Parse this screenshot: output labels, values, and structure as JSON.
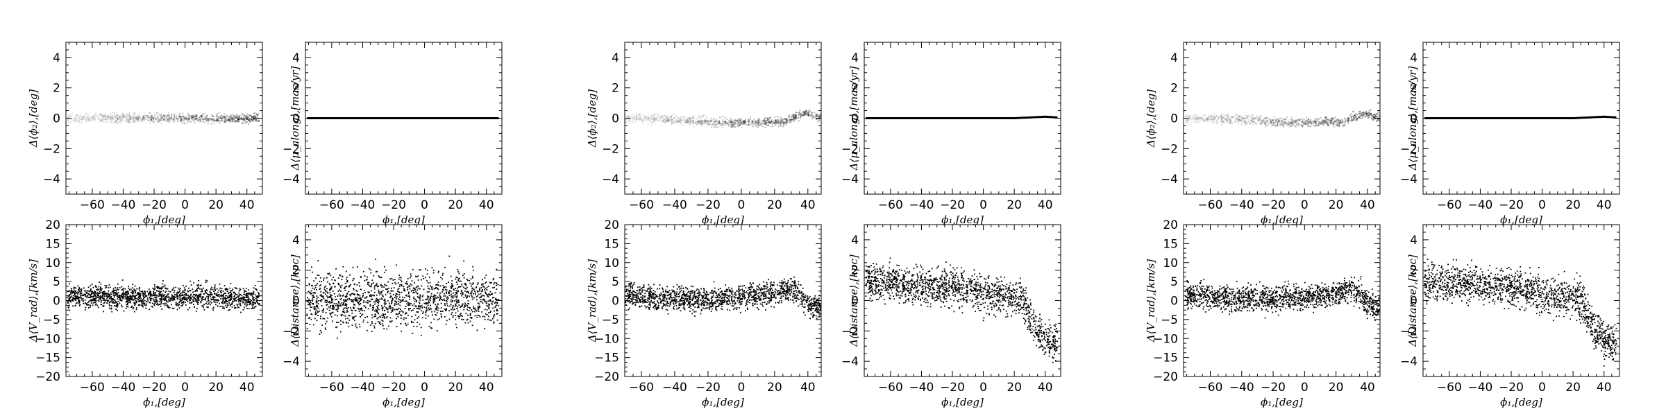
{
  "chart_data": [
    {
      "type": "scatter",
      "panel": "group1-top-left",
      "xlabel": "ϕ₁,[deg]",
      "ylabel": "Δ⟨ϕ₂⟩,[deg]",
      "xlim": [
        -77,
        50
      ],
      "ylim": [
        -5,
        5
      ],
      "xticks": [
        "−60",
        "−40",
        "−20",
        "0",
        "20",
        "40"
      ],
      "xtick_values": [
        -60,
        -40,
        -20,
        0,
        20,
        40
      ],
      "yticks": [
        "4",
        "2",
        "0",
        "−2",
        "−4"
      ],
      "ytick_values": [
        4,
        2,
        0,
        -2,
        -4
      ],
      "series": [
        {
          "style": "faint-band",
          "x": [
            -76,
            -70,
            -60,
            -50,
            -40,
            -30,
            -20,
            -10,
            0,
            10,
            20,
            30,
            40,
            48
          ],
          "y": [
            0,
            0,
            0,
            0,
            0,
            0,
            0,
            0,
            0,
            0,
            0,
            0,
            0,
            0
          ],
          "spread": 0.15
        }
      ]
    },
    {
      "type": "scatter",
      "panel": "group1-top-right",
      "xlabel": "ϕ₁,[deg]",
      "ylabel": "Δ⟨μ_along⟩,[mas/yr]",
      "xlim": [
        -77,
        50
      ],
      "ylim": [
        -5,
        5
      ],
      "xticks": [
        "−60",
        "−40",
        "−20",
        "0",
        "20",
        "40"
      ],
      "xtick_values": [
        -60,
        -40,
        -20,
        0,
        20,
        40
      ],
      "yticks": [
        "4",
        "2",
        "0",
        "−2",
        "−4"
      ],
      "ytick_values": [
        4,
        2,
        0,
        -2,
        -4
      ],
      "series": [
        {
          "style": "thin-line",
          "x": [
            -76,
            -60,
            -40,
            -20,
            0,
            20,
            40,
            48
          ],
          "y": [
            0,
            0,
            0,
            0,
            0,
            0,
            0,
            0
          ],
          "spread": 0.03
        }
      ]
    },
    {
      "type": "scatter",
      "panel": "group1-bottom-left",
      "xlabel": "ϕ₁,[deg]",
      "ylabel": "Δ⟨V_rad⟩,[km/s]",
      "xlim": [
        -77,
        50
      ],
      "ylim": [
        -20,
        20
      ],
      "xticks": [
        "−60",
        "−40",
        "−20",
        "0",
        "20",
        "40"
      ],
      "xtick_values": [
        -60,
        -40,
        -20,
        0,
        20,
        40
      ],
      "yticks": [
        "20",
        "15",
        "10",
        "5",
        "0",
        "−5",
        "−10",
        "−15",
        "−20"
      ],
      "ytick_values": [
        20,
        15,
        10,
        5,
        0,
        -5,
        -10,
        -15,
        -20
      ],
      "series": [
        {
          "style": "dense-points",
          "x": [
            -76,
            -60,
            -40,
            -20,
            0,
            20,
            40,
            48
          ],
          "y": [
            1,
            1,
            1,
            1,
            1,
            1,
            0.5,
            0.5
          ],
          "spread": 1.5
        }
      ]
    },
    {
      "type": "scatter",
      "panel": "group1-bottom-right",
      "xlabel": "ϕ₁,[deg]",
      "ylabel": "Δ⟨Distance⟩,[kpc]",
      "xlim": [
        -77,
        50
      ],
      "ylim": [
        -5,
        5
      ],
      "xticks": [
        "−60",
        "−40",
        "−20",
        "0",
        "20",
        "40"
      ],
      "xtick_values": [
        -60,
        -40,
        -20,
        0,
        20,
        40
      ],
      "yticks": [
        "4",
        "2",
        "0",
        "−2",
        "−4"
      ],
      "ytick_values": [
        4,
        2,
        0,
        -2,
        -4
      ],
      "series": [
        {
          "style": "dense-points",
          "x": [
            -76,
            -60,
            -40,
            -20,
            0,
            20,
            40,
            48
          ],
          "y": [
            0,
            0,
            0,
            0.1,
            0.1,
            0.2,
            0.1,
            0
          ],
          "spread": 0.9
        }
      ]
    },
    {
      "type": "scatter",
      "panel": "group2-top-left",
      "xlabel": "ϕ₁,[deg]",
      "ylabel": "Δ⟨ϕ₂⟩,[deg]",
      "xlim": [
        -70,
        48
      ],
      "ylim": [
        -5,
        5
      ],
      "xticks": [
        "−60",
        "−40",
        "−20",
        "0",
        "20",
        "40"
      ],
      "xtick_values": [
        -60,
        -40,
        -20,
        0,
        20,
        40
      ],
      "yticks": [
        "4",
        "2",
        "0",
        "−2",
        "−4"
      ],
      "ytick_values": [
        4,
        2,
        0,
        -2,
        -4
      ],
      "series": [
        {
          "style": "faint-band",
          "x": [
            -70,
            -60,
            -50,
            -40,
            -30,
            -20,
            -10,
            0,
            10,
            20,
            25,
            30,
            35,
            40,
            45,
            48
          ],
          "y": [
            0,
            0,
            -0.05,
            -0.1,
            -0.15,
            -0.25,
            -0.3,
            -0.3,
            -0.25,
            -0.2,
            -0.3,
            0,
            0.2,
            0.3,
            0.1,
            0
          ],
          "spread": 0.15
        }
      ]
    },
    {
      "type": "scatter",
      "panel": "group2-top-right",
      "xlabel": "ϕ₁,[deg]",
      "ylabel": "Δ⟨μ_along⟩,[mas/yr]",
      "xlim": [
        -77,
        50
      ],
      "ylim": [
        -5,
        5
      ],
      "xticks": [
        "−60",
        "−40",
        "−20",
        "0",
        "20",
        "40"
      ],
      "xtick_values": [
        -60,
        -40,
        -20,
        0,
        20,
        40
      ],
      "yticks": [
        "4",
        "2",
        "0",
        "−2",
        "−4"
      ],
      "ytick_values": [
        4,
        2,
        0,
        -2,
        -4
      ],
      "series": [
        {
          "style": "thin-line",
          "x": [
            -76,
            -60,
            -40,
            -20,
            0,
            20,
            30,
            40,
            48
          ],
          "y": [
            0,
            0,
            0,
            0,
            0,
            0,
            0.05,
            0.1,
            0.05
          ],
          "spread": 0.04
        }
      ]
    },
    {
      "type": "scatter",
      "panel": "group2-bottom-left",
      "xlabel": "ϕ₁,[deg]",
      "ylabel": "Δ⟨V_rad⟩,[km/s]",
      "xlim": [
        -70,
        48
      ],
      "ylim": [
        -20,
        20
      ],
      "xticks": [
        "−60",
        "−40",
        "−20",
        "0",
        "20",
        "40"
      ],
      "xtick_values": [
        -60,
        -40,
        -20,
        0,
        20,
        40
      ],
      "yticks": [
        "20",
        "15",
        "10",
        "5",
        "0",
        "−5",
        "−10",
        "−15",
        "−20"
      ],
      "ytick_values": [
        20,
        15,
        10,
        5,
        0,
        -5,
        -10,
        -15,
        -20
      ],
      "series": [
        {
          "style": "dense-points",
          "x": [
            -70,
            -60,
            -50,
            -40,
            -30,
            -20,
            -10,
            0,
            10,
            20,
            30,
            35,
            40,
            45,
            48
          ],
          "y": [
            1.5,
            1,
            0.5,
            0.5,
            0.5,
            0.5,
            0.8,
            1,
            1.5,
            2,
            3,
            2,
            -1,
            -2,
            -1
          ],
          "spread": 1.6
        }
      ]
    },
    {
      "type": "scatter",
      "panel": "group2-bottom-right",
      "xlabel": "ϕ₁,[deg]",
      "ylabel": "Δ⟨Distance⟩,[kpc]",
      "xlim": [
        -77,
        50
      ],
      "ylim": [
        -5,
        5
      ],
      "xticks": [
        "−60",
        "−40",
        "−20",
        "0",
        "20",
        "40"
      ],
      "xtick_values": [
        -60,
        -40,
        -20,
        0,
        20,
        40
      ],
      "yticks": [
        "4",
        "2",
        "0",
        "−2",
        "−4"
      ],
      "ytick_values": [
        4,
        2,
        0,
        -2,
        -4
      ],
      "series": [
        {
          "style": "dense-points",
          "x": [
            -76,
            -60,
            -40,
            -20,
            0,
            10,
            20,
            25,
            30,
            35,
            40,
            48
          ],
          "y": [
            1.2,
            1.2,
            1.0,
            0.9,
            0.5,
            0.3,
            0.2,
            0,
            -1,
            -2,
            -2.5,
            -2.8
          ],
          "spread": 0.6
        }
      ]
    },
    {
      "type": "scatter",
      "panel": "group3-top-left",
      "xlabel": "ϕ₁,[deg]",
      "ylabel": "Δ⟨ϕ₂⟩,[deg]",
      "xlim": [
        -77,
        48
      ],
      "ylim": [
        -5,
        5
      ],
      "xticks": [
        "−60",
        "−40",
        "−20",
        "0",
        "20",
        "40"
      ],
      "xtick_values": [
        -60,
        -40,
        -20,
        0,
        20,
        40
      ],
      "yticks": [
        "4",
        "2",
        "0",
        "−2",
        "−4"
      ],
      "ytick_values": [
        4,
        2,
        0,
        -2,
        -4
      ],
      "series": [
        {
          "style": "faint-band",
          "x": [
            -76,
            -60,
            -50,
            -40,
            -30,
            -20,
            -10,
            0,
            10,
            20,
            25,
            30,
            35,
            40,
            45,
            48
          ],
          "y": [
            0,
            0,
            -0.05,
            -0.1,
            -0.15,
            -0.25,
            -0.3,
            -0.3,
            -0.25,
            -0.2,
            -0.3,
            0,
            0.2,
            0.3,
            0.1,
            0
          ],
          "spread": 0.15
        }
      ]
    },
    {
      "type": "scatter",
      "panel": "group3-top-right",
      "xlabel": "ϕ₁,[deg]",
      "ylabel": "Δ⟨μ_along⟩,[mas/yr]",
      "xlim": [
        -77,
        50
      ],
      "ylim": [
        -5,
        5
      ],
      "xticks": [
        "−60",
        "−40",
        "−20",
        "0",
        "20",
        "40"
      ],
      "xtick_values": [
        -60,
        -40,
        -20,
        0,
        20,
        40
      ],
      "yticks": [
        "4",
        "2",
        "0",
        "−2",
        "−4"
      ],
      "ytick_values": [
        4,
        2,
        0,
        -2,
        -4
      ],
      "series": [
        {
          "style": "thin-line",
          "x": [
            -76,
            -60,
            -40,
            -20,
            0,
            20,
            30,
            40,
            48
          ],
          "y": [
            0,
            0,
            0,
            0,
            0,
            0,
            0.05,
            0.1,
            0.05
          ],
          "spread": 0.04
        }
      ]
    },
    {
      "type": "scatter",
      "panel": "group3-bottom-left",
      "xlabel": "ϕ₁,[deg]",
      "ylabel": "Δ⟨V_rad⟩,[km/s]",
      "xlim": [
        -77,
        48
      ],
      "ylim": [
        -20,
        20
      ],
      "xticks": [
        "−60",
        "−40",
        "−20",
        "0",
        "20",
        "40"
      ],
      "xtick_values": [
        -60,
        -40,
        -20,
        0,
        20,
        40
      ],
      "yticks": [
        "20",
        "15",
        "10",
        "5",
        "0",
        "−5",
        "−10",
        "−15",
        "−20"
      ],
      "ytick_values": [
        20,
        15,
        10,
        5,
        0,
        -5,
        -10,
        -15,
        -20
      ],
      "series": [
        {
          "style": "dense-points",
          "x": [
            -76,
            -60,
            -50,
            -40,
            -30,
            -20,
            -10,
            0,
            10,
            20,
            30,
            35,
            40,
            45,
            48
          ],
          "y": [
            1.5,
            1,
            0.5,
            0.5,
            0.5,
            0.5,
            0.8,
            1,
            1.5,
            2,
            3,
            2,
            -1,
            -2,
            -1
          ],
          "spread": 1.6
        }
      ]
    },
    {
      "type": "scatter",
      "panel": "group3-bottom-right",
      "xlabel": "ϕ₁,[deg]",
      "ylabel": "Δ⟨Distance⟩,[kpc]",
      "xlim": [
        -77,
        50
      ],
      "ylim": [
        -5,
        5
      ],
      "xticks": [
        "−60",
        "−40",
        "−20",
        "0",
        "20",
        "40"
      ],
      "xtick_values": [
        -60,
        -40,
        -20,
        0,
        20,
        40
      ],
      "yticks": [
        "4",
        "2",
        "0",
        "−2",
        "−4"
      ],
      "ytick_values": [
        4,
        2,
        0,
        -2,
        -4
      ],
      "series": [
        {
          "style": "dense-points",
          "x": [
            -76,
            -60,
            -40,
            -20,
            0,
            10,
            20,
            25,
            30,
            35,
            40,
            48
          ],
          "y": [
            1.2,
            1.2,
            1.0,
            0.9,
            0.5,
            0.3,
            0.2,
            0,
            -1,
            -2,
            -2.5,
            -2.8
          ],
          "spread": 0.6
        }
      ]
    }
  ]
}
